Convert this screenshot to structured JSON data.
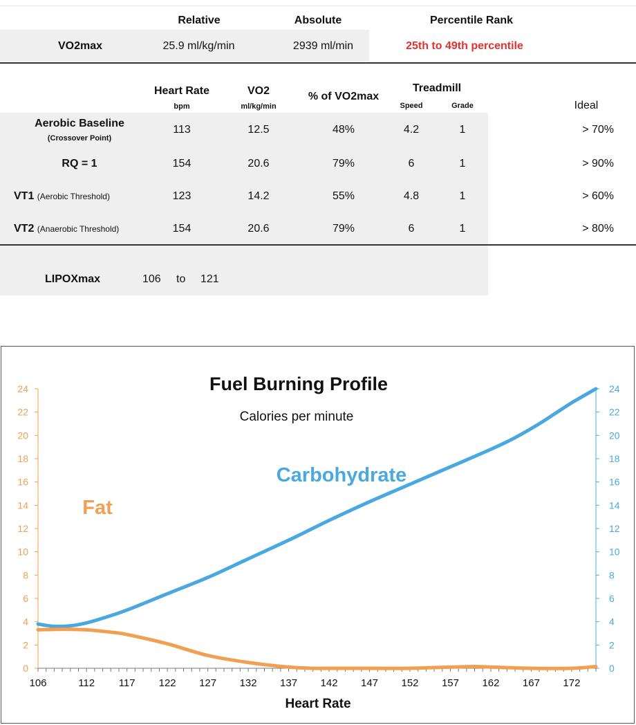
{
  "summary": {
    "col_relative": "Relative",
    "col_absolute": "Absolute",
    "col_percentile": "Percentile Rank",
    "row_label": "VO2max",
    "relative_value": "25.9 ml/kg/min",
    "absolute_value": "2939 ml/min",
    "percentile_value": "25th to 49th  percentile",
    "percentile_color": "#e53030"
  },
  "thresholds": {
    "headers": {
      "heart_rate": "Heart Rate",
      "heart_rate_unit": "bpm",
      "vo2": "VO2",
      "vo2_unit": "ml/kg/min",
      "pct_vo2max": "% of VO2max",
      "treadmill": "Treadmill",
      "speed": "Speed",
      "grade": "Grade",
      "ideal": "Ideal"
    },
    "rows": [
      {
        "label": "Aerobic Baseline",
        "sub": "(Crossover Point)",
        "hr": "113",
        "vo2": "12.5",
        "pct": "48%",
        "speed": "4.2",
        "grade": "1",
        "ideal": "> 70%"
      },
      {
        "label": "RQ = 1",
        "sub": "",
        "hr": "154",
        "vo2": "20.6",
        "pct": "79%",
        "speed": "6",
        "grade": "1",
        "ideal": "> 90%"
      },
      {
        "label": "VT1",
        "sub": "(Aerobic Threshold)",
        "hr": "123",
        "vo2": "14.2",
        "pct": "55%",
        "speed": "4.8",
        "grade": "1",
        "ideal": "> 60%"
      },
      {
        "label": "VT2",
        "sub": "(Anaerobic Threshold)",
        "hr": "154",
        "vo2": "20.6",
        "pct": "79%",
        "speed": "6",
        "grade": "1",
        "ideal": "> 80%"
      }
    ]
  },
  "lipox": {
    "label": "LIPOXmax",
    "from": "106",
    "to_word": "to",
    "to": "121"
  },
  "chart_data": {
    "type": "line",
    "title": "Fuel Burning Profile",
    "subtitle": "Calories per minute",
    "xlabel": "Heart Rate",
    "ylabel": "",
    "xlim": [
      106,
      175
    ],
    "ylim": [
      0,
      24
    ],
    "x_ticks": [
      106,
      112,
      117,
      122,
      127,
      132,
      137,
      142,
      147,
      152,
      157,
      162,
      167,
      172
    ],
    "y_ticks": [
      0,
      2,
      4,
      6,
      8,
      10,
      12,
      14,
      16,
      18,
      20,
      22,
      24
    ],
    "grid": false,
    "legend": "inline labels",
    "series": [
      {
        "name": "Carbohydrate",
        "color": "#4aa8e0",
        "axis": "right",
        "x": [
          106,
          108,
          110,
          112,
          114,
          117,
          122,
          127,
          132,
          137,
          142,
          147,
          152,
          157,
          162,
          165,
          168,
          170,
          172,
          174,
          175
        ],
        "y": [
          3.8,
          3.6,
          3.65,
          3.9,
          4.3,
          5.0,
          6.4,
          7.8,
          9.4,
          11.0,
          12.7,
          14.3,
          15.8,
          17.3,
          18.8,
          19.8,
          21.0,
          21.9,
          22.8,
          23.6,
          24.0
        ]
      },
      {
        "name": "Fat",
        "color": "#f0a050",
        "axis": "left",
        "x": [
          106,
          109,
          112,
          115,
          117,
          122,
          127,
          132,
          137,
          140,
          142,
          147,
          152,
          157,
          160,
          162,
          167,
          172,
          175
        ],
        "y": [
          3.3,
          3.35,
          3.3,
          3.1,
          2.9,
          2.1,
          1.1,
          0.5,
          0.1,
          0.0,
          0.0,
          0.0,
          0.0,
          0.1,
          0.15,
          0.1,
          0.0,
          0.0,
          0.15
        ]
      }
    ]
  }
}
